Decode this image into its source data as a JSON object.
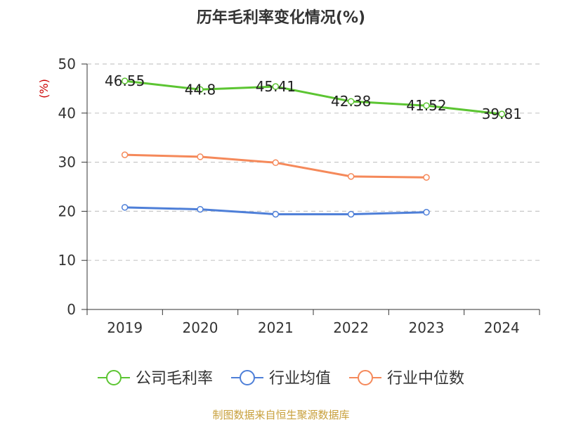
{
  "chart_data": {
    "type": "line",
    "title": "历年毛利率变化情况(%)",
    "ylabel": "(%)",
    "xlabel": "",
    "categories": [
      "2019",
      "2020",
      "2021",
      "2022",
      "2023",
      "2024"
    ],
    "ylim": [
      0,
      50
    ],
    "yticks": [
      0,
      10,
      20,
      30,
      40,
      50
    ],
    "grid": true,
    "legend_position": "bottom",
    "series": [
      {
        "name": "公司毛利率",
        "color": "#5cc532",
        "values": [
          46.55,
          44.8,
          45.41,
          42.38,
          41.52,
          39.81
        ],
        "labels": [
          "46.55",
          "44.8",
          "45.41",
          "42.38",
          "41.52",
          "39.81"
        ],
        "show_labels": true
      },
      {
        "name": "行业均值",
        "color": "#4e7fd8",
        "values": [
          20.8,
          20.4,
          19.4,
          19.4,
          19.8,
          null
        ],
        "show_labels": false
      },
      {
        "name": "行业中位数",
        "color": "#f5895a",
        "values": [
          31.5,
          31.1,
          29.9,
          27.1,
          26.9,
          null
        ],
        "show_labels": false
      }
    ]
  },
  "footer": {
    "source": "制图数据来自恒生聚源数据库"
  }
}
